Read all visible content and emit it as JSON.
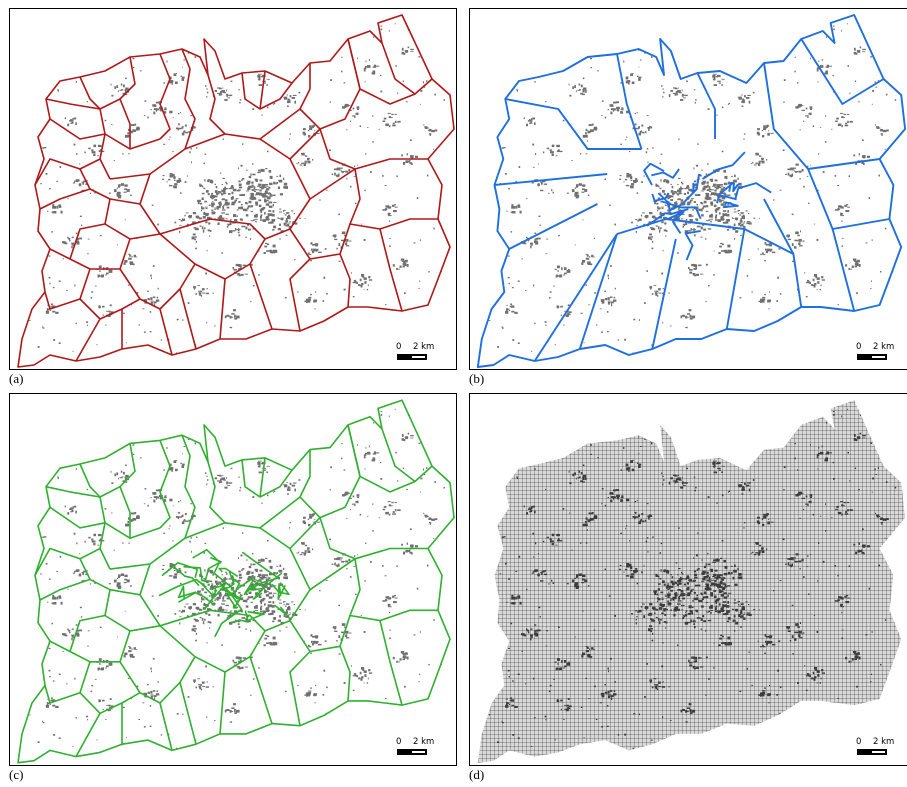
{
  "colors": {
    "panel_a_outline": "#b01818",
    "panel_b_outline": "#1e6fe0",
    "panel_c_outline": "#2fb02f",
    "built_up": "#707070",
    "grid": "#000000"
  },
  "panels": [
    {
      "label": "(a)",
      "description_icon": "zone-map-red-outline",
      "scalebar": {
        "start": "0",
        "end": "2 km"
      }
    },
    {
      "label": "(b)",
      "description_icon": "zone-map-blue-outline",
      "scalebar": {
        "start": "0",
        "end": "2 km"
      }
    },
    {
      "label": "(c)",
      "description_icon": "zone-map-green-outline",
      "scalebar": {
        "start": "0",
        "end": "2 km"
      }
    },
    {
      "label": "(d)",
      "description_icon": "grid-map",
      "scalebar": {
        "start": "0",
        "end": "2 km"
      }
    }
  ]
}
